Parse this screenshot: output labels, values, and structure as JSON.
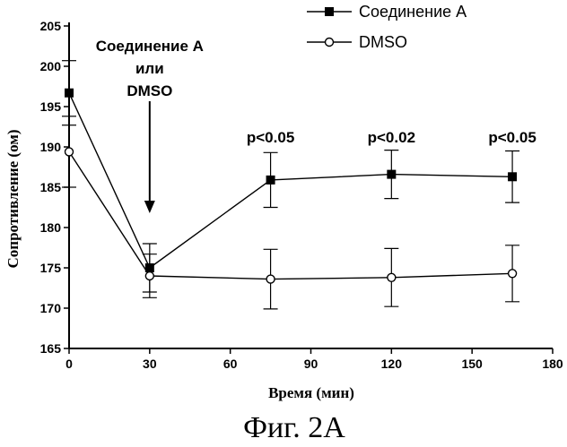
{
  "chart_data": {
    "type": "line",
    "xlabel": "Время (мин)",
    "ylabel": "Сопротивление (ом)",
    "xlim": [
      0,
      180
    ],
    "ylim": [
      165,
      205
    ],
    "xticks": [
      0,
      30,
      60,
      90,
      120,
      150,
      180
    ],
    "yticks": [
      165,
      170,
      175,
      180,
      185,
      190,
      195,
      200,
      205
    ],
    "grid": false,
    "legend_position": "top-right",
    "series": [
      {
        "name": "Соединение A",
        "marker": "filled-square",
        "x": [
          0,
          30,
          75,
          120,
          165
        ],
        "y": [
          196.7,
          175.0,
          185.9,
          186.6,
          186.3
        ],
        "err": [
          4.0,
          3.0,
          3.4,
          3.0,
          3.2
        ]
      },
      {
        "name": "DMSO",
        "marker": "open-circle",
        "x": [
          0,
          30,
          75,
          120,
          165
        ],
        "y": [
          189.4,
          174.0,
          173.6,
          173.8,
          174.3
        ],
        "err": [
          4.4,
          2.7,
          3.7,
          3.6,
          3.5
        ]
      }
    ],
    "annotations": [
      {
        "x": 75,
        "text": "p<0.05"
      },
      {
        "x": 120,
        "text": "p<0.02"
      },
      {
        "x": 165,
        "text": "p<0.05"
      }
    ],
    "arrow": {
      "x": 30,
      "lines": [
        "Соединение A",
        "или",
        "DMSO"
      ]
    }
  },
  "caption": "Фиг. 2А"
}
